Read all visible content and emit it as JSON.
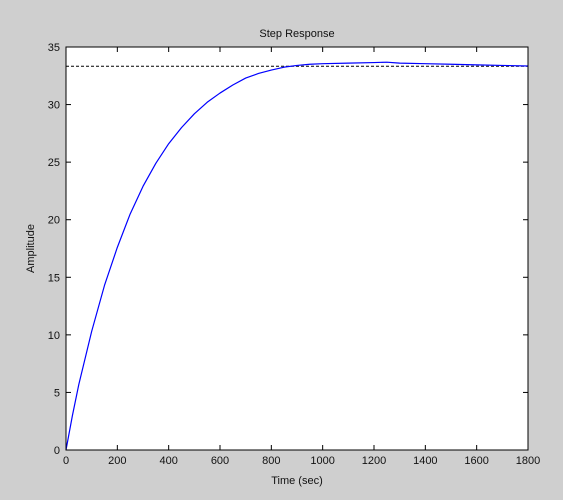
{
  "colors": {
    "figure_background": "#cfcfcf",
    "axes_background": "#ffffff",
    "response_line": "#0000ff",
    "steady_state_line": "#000000"
  },
  "chart_data": {
    "type": "line",
    "title": "Step Response",
    "xlabel": "Time (sec)",
    "ylabel": "Amplitude",
    "xlim": [
      0,
      1800
    ],
    "ylim": [
      0,
      35
    ],
    "xticks": [
      0,
      200,
      400,
      600,
      800,
      1000,
      1200,
      1400,
      1600,
      1800
    ],
    "yticks": [
      0,
      5,
      10,
      15,
      20,
      25,
      30,
      35
    ],
    "grid": false,
    "legend": "none",
    "steady_state": 33.33,
    "series": [
      {
        "line_style": "solid",
        "x": [
          0,
          25,
          50,
          100,
          150,
          200,
          250,
          300,
          350,
          400,
          450,
          500,
          550,
          600,
          650,
          700,
          750,
          800,
          850,
          900,
          950,
          1000,
          1100,
          1200,
          1250,
          1300,
          1400,
          1500,
          1600,
          1700,
          1800
        ],
        "y": [
          0,
          3.0,
          5.7,
          10.3,
          14.3,
          17.6,
          20.5,
          22.9,
          24.9,
          26.6,
          28.0,
          29.2,
          30.2,
          31.0,
          31.7,
          32.3,
          32.7,
          33.0,
          33.25,
          33.4,
          33.5,
          33.55,
          33.6,
          33.65,
          33.68,
          33.6,
          33.55,
          33.5,
          33.45,
          33.4,
          33.35
        ]
      }
    ]
  }
}
